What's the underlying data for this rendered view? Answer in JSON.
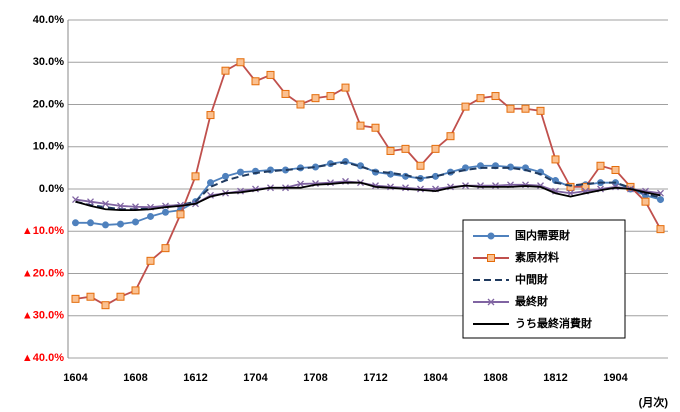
{
  "chart_data": {
    "type": "line",
    "categories": [
      "1604",
      null,
      null,
      null,
      "1608",
      null,
      null,
      null,
      "1612",
      null,
      null,
      null,
      "1704",
      null,
      null,
      null,
      "1708",
      null,
      null,
      null,
      "1712",
      null,
      null,
      null,
      "1804",
      null,
      null,
      null,
      "1808",
      null,
      null,
      null,
      "1812",
      null,
      null,
      null,
      "1904",
      null,
      null,
      null
    ],
    "xlabel": "(月次)",
    "series": [
      {
        "name": "国内需要財",
        "color": "#4f81bd",
        "marker": "circle",
        "dash": false,
        "values": [
          -8,
          -8,
          -8.5,
          -8.3,
          -7.8,
          -6.5,
          -5.5,
          -5,
          -3,
          1.5,
          3,
          4,
          4.2,
          4.5,
          4.5,
          5,
          5.2,
          6,
          6.5,
          5.5,
          4,
          3.5,
          3,
          2.5,
          3,
          4,
          5,
          5.5,
          5.5,
          5.2,
          5,
          4,
          2,
          0.5,
          1,
          1.5,
          1.5,
          0,
          -1.5,
          -2.5
        ]
      },
      {
        "name": "素原材料",
        "color": "#c0504d",
        "marker": "square",
        "dash": false,
        "values": [
          -26,
          -25.5,
          -27.5,
          -25.5,
          -24,
          -17,
          -14,
          -6,
          3,
          17.5,
          28,
          30,
          25.5,
          27,
          22.5,
          20,
          21.5,
          22,
          24,
          15,
          14.5,
          9,
          9.5,
          5.5,
          9.5,
          12.5,
          19.5,
          21.5,
          22,
          19,
          19,
          18.5,
          7,
          0.5,
          0.5,
          5.5,
          4.5,
          0.5,
          -3,
          -9.5
        ]
      },
      {
        "name": "中間財",
        "color": "#1f3a5f",
        "marker": null,
        "dash": true,
        "values": [
          -3,
          -3.8,
          -4.3,
          -4.8,
          -4.8,
          -4.5,
          -4,
          -3.8,
          -3,
          0.5,
          2,
          3,
          3.8,
          4.2,
          4.5,
          4.8,
          5.2,
          5.8,
          6.3,
          5.3,
          4.2,
          3.8,
          3.3,
          2.5,
          3,
          3.8,
          4.5,
          5,
          5,
          5,
          4.5,
          3.5,
          1.5,
          0.8,
          1.2,
          1.5,
          1.5,
          0.3,
          -1.2,
          -2
        ]
      },
      {
        "name": "最終財",
        "color": "#8064a2",
        "marker": "x",
        "dash": false,
        "values": [
          -2.5,
          -3,
          -3.5,
          -4,
          -4.2,
          -4.3,
          -4,
          -3.8,
          -3.5,
          -1.5,
          -1,
          -0.5,
          0,
          0.3,
          0.3,
          1.2,
          1.3,
          1.5,
          1.8,
          1.5,
          0.8,
          0.5,
          0.3,
          0,
          0,
          0.5,
          0.8,
          0.8,
          0.8,
          1,
          1,
          0.8,
          -0.5,
          -1,
          -0.5,
          0,
          0.5,
          0,
          -0.5,
          -1
        ]
      },
      {
        "name": "うち最終消費財",
        "color": "#000000",
        "marker": null,
        "dash": false,
        "values": [
          -3,
          -4,
          -4.8,
          -5,
          -5,
          -4.8,
          -4.3,
          -4,
          -3.5,
          -1.8,
          -1,
          -0.8,
          -0.3,
          0.3,
          0.3,
          0.3,
          1,
          1.2,
          1.5,
          1.5,
          0.5,
          0.3,
          0,
          -0.2,
          -0.5,
          0.3,
          0.8,
          0.5,
          0.5,
          0.5,
          0.7,
          0.5,
          -1,
          -1.8,
          -1,
          -0.3,
          0.3,
          0,
          -0.8,
          -1.5
        ]
      }
    ],
    "ylim": [
      -40,
      40
    ],
    "yticks": [
      {
        "value": 40,
        "label": "40.0%"
      },
      {
        "value": 30,
        "label": "30.0%"
      },
      {
        "value": 20,
        "label": "20.0%"
      },
      {
        "value": 10,
        "label": "10.0%"
      },
      {
        "value": 0,
        "label": "0.0%"
      },
      {
        "value": -10,
        "label": "▲10.0%"
      },
      {
        "value": -20,
        "label": "▲20.0%"
      },
      {
        "value": -30,
        "label": "▲30.0%"
      },
      {
        "value": -40,
        "label": "▲40.0%"
      }
    ],
    "negative_tick_color": "#ff0000",
    "grid": true
  }
}
